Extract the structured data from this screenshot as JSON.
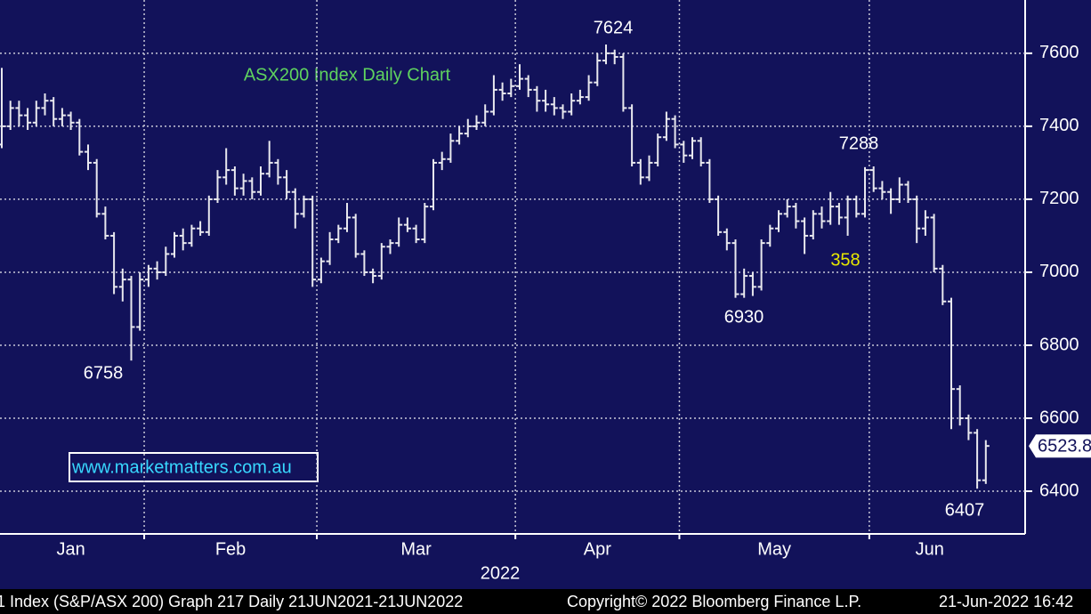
{
  "chart_data": {
    "type": "ohlc",
    "title": "ASX200 Index Daily Chart",
    "watermark": "www.marketmatters.com.au",
    "year_label": "2022",
    "bar_color": "#e8e8ee",
    "title_color": "#5fd35f",
    "watermark_color": "#38d8ff",
    "highlight_color": "#e8e800",
    "background": "#12125a",
    "grid": true,
    "ylim": [
      6283,
      7746
    ],
    "yticks": [
      6400,
      6600,
      6800,
      7000,
      7200,
      7400,
      7600
    ],
    "annotations": [
      6758,
      7624,
      6930,
      7288,
      6407
    ],
    "highlight_label": 358,
    "last_price": 6523.8,
    "footer": [
      "1 Index (S&P/ASX 200) Graph 217  Daily 21JUN2021-21JUN2022",
      "Copyright© 2022 Bloomberg Finance L.P.",
      "21-Jun-2022 16:42"
    ],
    "months": [
      {
        "label": "Jan",
        "bars": [
          [
            7350,
            7560,
            7340,
            7400
          ],
          [
            7400,
            7470,
            7390,
            7450
          ],
          [
            7450,
            7470,
            7400,
            7430
          ],
          [
            7430,
            7450,
            7390,
            7410
          ],
          [
            7410,
            7470,
            7400,
            7450
          ],
          [
            7450,
            7490,
            7430,
            7470
          ],
          [
            7470,
            7480,
            7400,
            7420
          ],
          [
            7420,
            7450,
            7400,
            7430
          ],
          [
            7430,
            7440,
            7390,
            7410
          ],
          [
            7410,
            7420,
            7320,
            7330
          ],
          [
            7330,
            7350,
            7280,
            7300
          ],
          [
            7300,
            7310,
            7150,
            7160
          ],
          [
            7160,
            7180,
            7090,
            7100
          ],
          [
            7100,
            7110,
            6940,
            6960
          ],
          [
            6960,
            7010,
            6920,
            6980
          ],
          [
            6980,
            6990,
            6758,
            6850
          ],
          [
            6850,
            7000,
            6840,
            6980
          ]
        ]
      },
      {
        "label": "Feb",
        "bars": [
          [
            6980,
            7020,
            6960,
            7010
          ],
          [
            7010,
            7030,
            6980,
            7000
          ],
          [
            7000,
            7070,
            6990,
            7050
          ],
          [
            7050,
            7110,
            7040,
            7100
          ],
          [
            7100,
            7120,
            7060,
            7080
          ],
          [
            7080,
            7130,
            7070,
            7120
          ],
          [
            7120,
            7140,
            7100,
            7110
          ],
          [
            7110,
            7210,
            7100,
            7200
          ],
          [
            7200,
            7280,
            7190,
            7260
          ],
          [
            7260,
            7340,
            7240,
            7280
          ],
          [
            7280,
            7290,
            7210,
            7230
          ],
          [
            7230,
            7270,
            7210,
            7250
          ],
          [
            7250,
            7260,
            7200,
            7220
          ],
          [
            7220,
            7290,
            7210,
            7270
          ],
          [
            7270,
            7360,
            7260,
            7300
          ],
          [
            7300,
            7310,
            7240,
            7260
          ],
          [
            7260,
            7280,
            7200,
            7220
          ],
          [
            7220,
            7230,
            7120,
            7160
          ],
          [
            7160,
            7210,
            7150,
            7200
          ],
          [
            7200,
            7210,
            6960,
            6980
          ]
        ]
      },
      {
        "label": "Mar",
        "bars": [
          [
            6980,
            7040,
            6970,
            7030
          ],
          [
            7030,
            7110,
            7020,
            7090
          ],
          [
            7090,
            7130,
            7080,
            7120
          ],
          [
            7120,
            7190,
            7110,
            7150
          ],
          [
            7150,
            7160,
            7040,
            7050
          ],
          [
            7050,
            7060,
            6990,
            7000
          ],
          [
            7000,
            7010,
            6970,
            6990
          ],
          [
            6990,
            7080,
            6980,
            7070
          ],
          [
            7070,
            7090,
            7050,
            7080
          ],
          [
            7080,
            7150,
            7070,
            7130
          ],
          [
            7130,
            7150,
            7110,
            7120
          ],
          [
            7120,
            7130,
            7080,
            7090
          ],
          [
            7090,
            7190,
            7080,
            7180
          ],
          [
            7180,
            7310,
            7170,
            7300
          ],
          [
            7300,
            7330,
            7280,
            7310
          ],
          [
            7310,
            7380,
            7300,
            7360
          ],
          [
            7360,
            7400,
            7350,
            7380
          ],
          [
            7380,
            7420,
            7370,
            7400
          ],
          [
            7400,
            7430,
            7390,
            7410
          ],
          [
            7410,
            7460,
            7400,
            7440
          ],
          [
            7440,
            7540,
            7430,
            7500
          ],
          [
            7500,
            7520,
            7470,
            7490
          ],
          [
            7490,
            7530,
            7480,
            7510
          ]
        ]
      },
      {
        "label": "Apr",
        "bars": [
          [
            7510,
            7570,
            7500,
            7530
          ],
          [
            7530,
            7540,
            7480,
            7500
          ],
          [
            7500,
            7510,
            7440,
            7470
          ],
          [
            7470,
            7500,
            7440,
            7460
          ],
          [
            7460,
            7480,
            7430,
            7450
          ],
          [
            7450,
            7460,
            7420,
            7440
          ],
          [
            7440,
            7490,
            7430,
            7470
          ],
          [
            7470,
            7500,
            7460,
            7480
          ],
          [
            7480,
            7540,
            7470,
            7520
          ],
          [
            7520,
            7600,
            7510,
            7580
          ],
          [
            7580,
            7624,
            7570,
            7600
          ],
          [
            7600,
            7610,
            7570,
            7590
          ],
          [
            7590,
            7600,
            7440,
            7450
          ],
          [
            7450,
            7460,
            7290,
            7300
          ],
          [
            7300,
            7310,
            7240,
            7260
          ],
          [
            7260,
            7320,
            7250,
            7300
          ],
          [
            7300,
            7380,
            7290,
            7370
          ],
          [
            7370,
            7440,
            7360,
            7420
          ],
          [
            7420,
            7430,
            7340,
            7350
          ]
        ]
      },
      {
        "label": "May",
        "bars": [
          [
            7350,
            7360,
            7300,
            7320
          ],
          [
            7320,
            7370,
            7310,
            7360
          ],
          [
            7360,
            7370,
            7290,
            7300
          ],
          [
            7300,
            7310,
            7190,
            7200
          ],
          [
            7200,
            7210,
            7100,
            7110
          ],
          [
            7110,
            7120,
            7060,
            7080
          ],
          [
            7080,
            7090,
            6930,
            6940
          ],
          [
            6940,
            7010,
            6930,
            6990
          ],
          [
            6990,
            7000,
            6935,
            6960
          ],
          [
            6960,
            7090,
            6950,
            7080
          ],
          [
            7080,
            7130,
            7070,
            7120
          ],
          [
            7120,
            7170,
            7110,
            7160
          ],
          [
            7160,
            7200,
            7150,
            7180
          ],
          [
            7180,
            7190,
            7120,
            7140
          ],
          [
            7140,
            7150,
            7050,
            7100
          ],
          [
            7100,
            7170,
            7090,
            7160
          ],
          [
            7160,
            7180,
            7120,
            7140
          ],
          [
            7140,
            7220,
            7130,
            7180
          ],
          [
            7180,
            7190,
            7130,
            7150
          ],
          [
            7150,
            7210,
            7100,
            7200
          ],
          [
            7200,
            7210,
            7150,
            7160
          ],
          [
            7160,
            7288,
            7150,
            7280
          ]
        ]
      },
      {
        "label": "Jun",
        "bars": [
          [
            7280,
            7290,
            7220,
            7230
          ],
          [
            7230,
            7250,
            7200,
            7220
          ],
          [
            7220,
            7230,
            7160,
            7200
          ],
          [
            7200,
            7260,
            7190,
            7240
          ],
          [
            7240,
            7250,
            7190,
            7200
          ],
          [
            7200,
            7210,
            7080,
            7120
          ],
          [
            7120,
            7170,
            7100,
            7150
          ],
          [
            7150,
            7160,
            7000,
            7010
          ],
          [
            7010,
            7020,
            6910,
            6920
          ],
          [
            6920,
            6930,
            6570,
            6680
          ],
          [
            6680,
            6690,
            6580,
            6600
          ],
          [
            6600,
            6610,
            6540,
            6560
          ],
          [
            6560,
            6570,
            6407,
            6430
          ],
          [
            6430,
            6540,
            6420,
            6524
          ]
        ]
      }
    ]
  }
}
